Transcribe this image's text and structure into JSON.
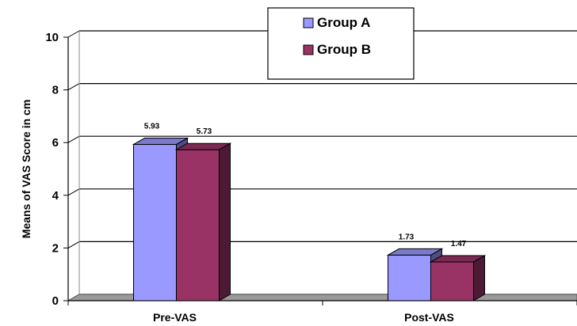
{
  "chart_data": {
    "type": "bar",
    "ylabel": "Means of VAS Score in cm",
    "ylim": [
      0,
      10
    ],
    "yticks": [
      "0",
      "2",
      "4",
      "6",
      "8",
      "10"
    ],
    "categories": [
      "Pre-VAS",
      "Post-VAS"
    ],
    "series": [
      {
        "name": "Group A",
        "values": [
          5.93,
          1.73
        ],
        "value_labels": [
          "5.93",
          "1.73"
        ],
        "color": "#9999ff"
      },
      {
        "name": "Group B",
        "values": [
          5.73,
          1.47
        ],
        "value_labels": [
          "5.73",
          "1.47"
        ],
        "color": "#993366"
      }
    ],
    "grid": true,
    "legend_position": "top-center",
    "style": "3d-clustered-column"
  }
}
